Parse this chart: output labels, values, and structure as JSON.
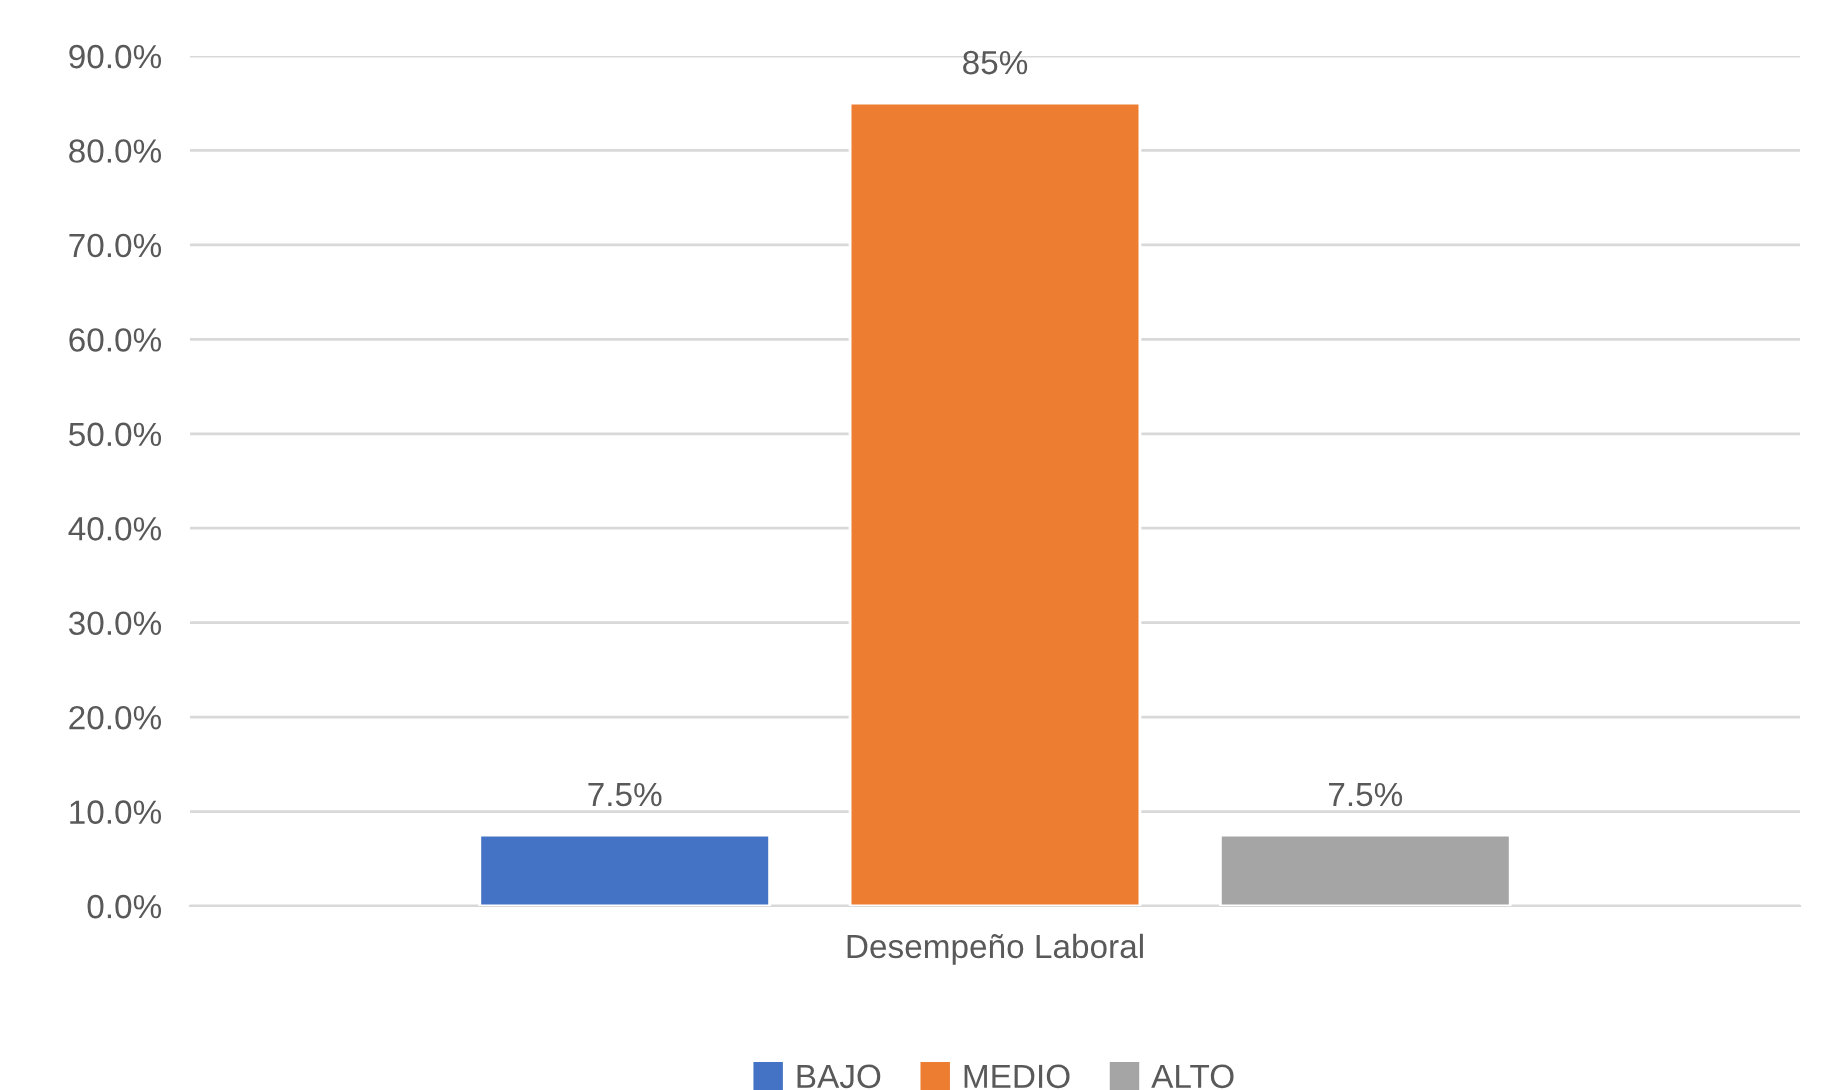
{
  "chart_data": {
    "type": "bar",
    "categories": [
      "Desempeño Laboral"
    ],
    "series": [
      {
        "name": "BAJO",
        "color": "#4472c4",
        "values": [
          7.5
        ],
        "value_labels": [
          "7.5%"
        ]
      },
      {
        "name": "MEDIO",
        "color": "#ed7d31",
        "values": [
          85
        ],
        "value_labels": [
          "85%"
        ]
      },
      {
        "name": "ALTO",
        "color": "#a5a5a5",
        "values": [
          7.5
        ],
        "value_labels": [
          "7.5%"
        ]
      }
    ],
    "ylim": [
      0,
      90
    ],
    "yticks": [
      {
        "value": 0,
        "label": "0.0%"
      },
      {
        "value": 10,
        "label": "10.0%"
      },
      {
        "value": 20,
        "label": "20.0%"
      },
      {
        "value": 30,
        "label": "30.0%"
      },
      {
        "value": 40,
        "label": "40.0%"
      },
      {
        "value": 50,
        "label": "50.0%"
      },
      {
        "value": 60,
        "label": "60.0%"
      },
      {
        "value": 70,
        "label": "70.0%"
      },
      {
        "value": 80,
        "label": "80.0%"
      },
      {
        "value": 90,
        "label": "90.0%"
      }
    ],
    "grid": "y",
    "legend": "bottom"
  }
}
